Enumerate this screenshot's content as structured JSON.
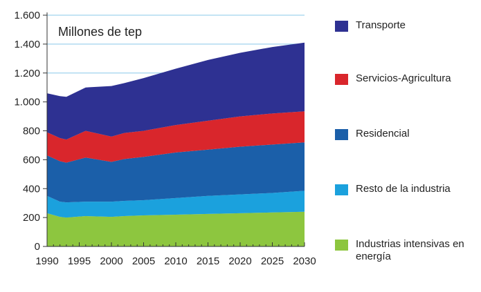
{
  "chart_data": {
    "type": "stacked_area",
    "annotation": "Millones de tep",
    "x": [
      1990,
      1992,
      1993,
      1996,
      2000,
      2002,
      2005,
      2010,
      2015,
      2020,
      2025,
      2030
    ],
    "series": [
      {
        "name": "Industrias intensivas en energía",
        "color": "#8dc63f",
        "values": [
          230,
          205,
          200,
          210,
          205,
          210,
          215,
          220,
          225,
          230,
          235,
          240
        ]
      },
      {
        "name": "Resto de la industria",
        "color": "#1ba1dd",
        "values": [
          120,
          105,
          105,
          100,
          105,
          105,
          105,
          115,
          125,
          130,
          135,
          145
        ]
      },
      {
        "name": "Residencial",
        "color": "#1b5fa9",
        "values": [
          280,
          280,
          275,
          305,
          275,
          290,
          300,
          315,
          320,
          330,
          335,
          335
        ]
      },
      {
        "name": "Servicios-Agricultura",
        "color": "#d9262c",
        "values": [
          160,
          160,
          160,
          185,
          175,
          180,
          180,
          190,
          200,
          210,
          215,
          215
        ]
      },
      {
        "name": "Transporte",
        "color": "#2e3192",
        "values": [
          270,
          290,
          295,
          300,
          350,
          345,
          365,
          390,
          420,
          440,
          460,
          475
        ]
      }
    ],
    "xlim": [
      1990,
      2030
    ],
    "xticks": [
      1990,
      1995,
      2000,
      2005,
      2010,
      2015,
      2020,
      2025,
      2030
    ],
    "ylim": [
      0,
      1600
    ],
    "yticks": [
      0,
      200,
      400,
      600,
      800,
      {
        "value": 1000,
        "label": "1.000"
      },
      {
        "value": 1200,
        "label": "1.200"
      },
      {
        "value": 1400,
        "label": "1.400"
      },
      {
        "value": 1600,
        "label": "1.600"
      }
    ],
    "grid": true
  }
}
